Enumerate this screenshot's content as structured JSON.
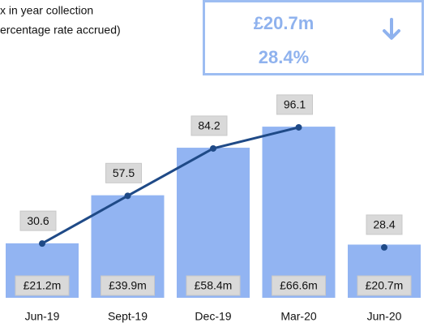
{
  "header": {
    "lines": [
      "x in year collection",
      "ercentage rate accrued)"
    ]
  },
  "kpi": {
    "amount": "£20.7m",
    "rate": "28.4%"
  },
  "chart_data": {
    "type": "bar_line",
    "categories": [
      "Jun-19",
      "Sept-19",
      "Dec-19",
      "Mar-20",
      "Jun-20"
    ],
    "values": [
      21.2,
      39.9,
      58.4,
      66.6,
      20.7
    ],
    "value_labels": [
      "£21.2m",
      "£39.9m",
      "£58.4m",
      "£66.6m",
      "£20.7m"
    ],
    "color": "#92b4f2",
    "ylim": [
      0,
      78
    ],
    "y2lim": [
      0,
      113
    ],
    "series": [
      {
        "color": "#1f4a87",
        "axis": "y2",
        "values": [
          30.6,
          57.5,
          84.2,
          96.1,
          null
        ]
      },
      {
        "color": "#1f4a87",
        "axis": "y2",
        "values": [
          null,
          null,
          null,
          null,
          28.4
        ]
      }
    ]
  }
}
